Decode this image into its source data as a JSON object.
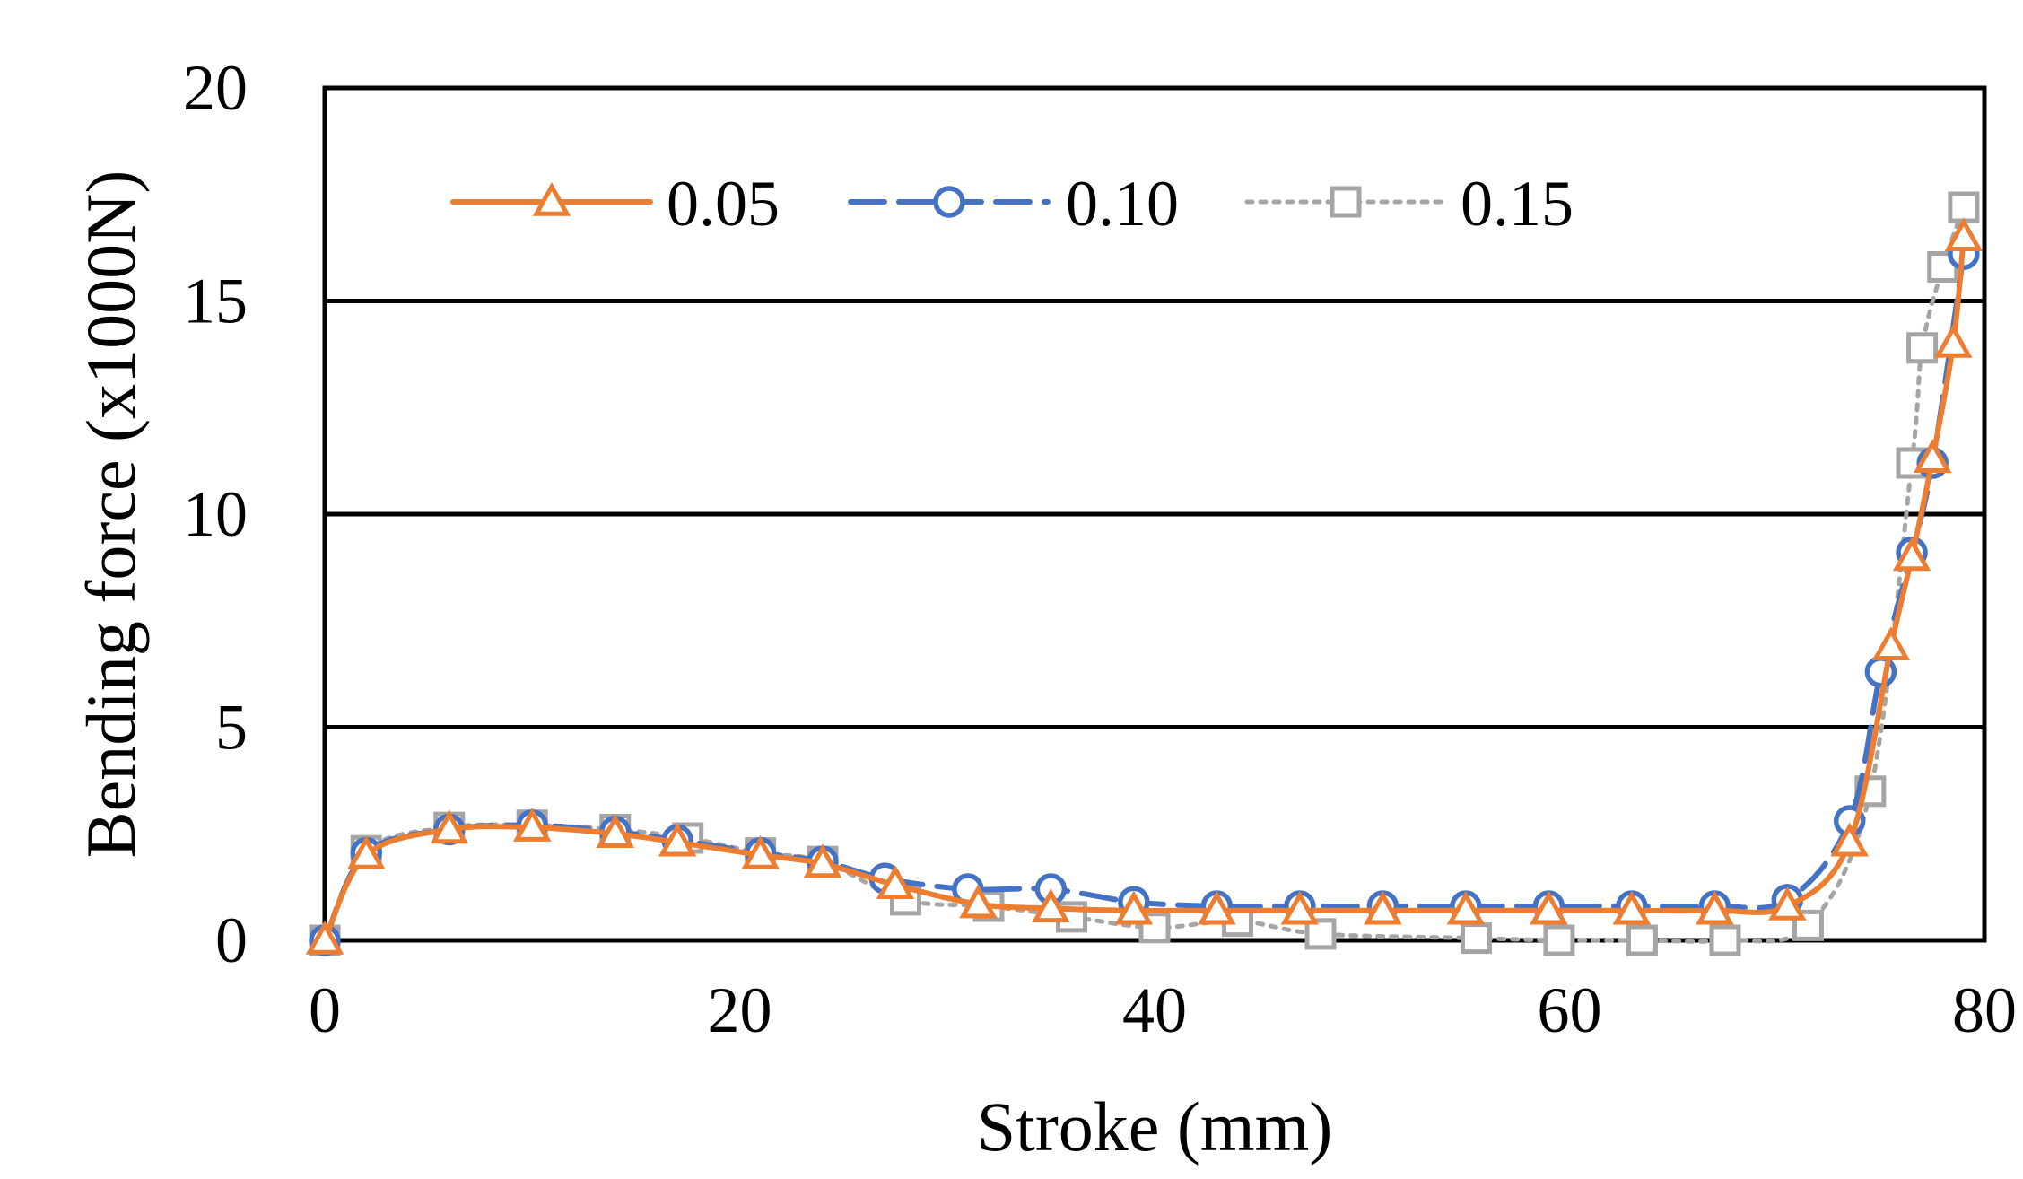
{
  "chart_data": {
    "type": "line",
    "title": "",
    "xlabel": "Stroke (mm)",
    "ylabel": "Bending force (x1000N)",
    "xlim": [
      0,
      80
    ],
    "ylim": [
      0,
      20
    ],
    "x_ticks": [
      0,
      20,
      40,
      60,
      80
    ],
    "x_tick_labels": [
      "0",
      "20",
      "40",
      "60",
      "80"
    ],
    "y_ticks": [
      0,
      5,
      10,
      15,
      20
    ],
    "y_tick_labels": [
      "0",
      "5",
      "10",
      "15",
      "20"
    ],
    "grid": "horizontal",
    "legend_position": "top",
    "series": [
      {
        "name": "0.05",
        "color": "#ED7D31",
        "line": "solid",
        "marker": "triangle",
        "x": [
          0,
          2,
          6,
          10,
          14,
          17,
          21,
          24,
          27.5,
          31.5,
          35,
          39,
          43,
          47,
          51,
          55,
          59,
          63,
          67,
          70.5,
          73.5,
          75.5,
          76.5,
          77.5,
          78.5,
          79
        ],
        "y": [
          0,
          2.0,
          2.6,
          2.65,
          2.5,
          2.3,
          2.0,
          1.8,
          1.3,
          0.85,
          0.75,
          0.7,
          0.7,
          0.7,
          0.7,
          0.7,
          0.7,
          0.7,
          0.7,
          0.8,
          2.3,
          6.9,
          9.0,
          11.3,
          14.0,
          16.5
        ]
      },
      {
        "name": "0.10",
        "color": "#4472C4",
        "line": "dashed",
        "marker": "circle",
        "x": [
          0,
          2,
          6,
          10,
          14,
          17,
          21,
          24,
          27,
          31,
          35,
          39,
          43,
          47,
          51,
          55,
          59,
          63,
          67,
          70.5,
          73.5,
          75,
          76.5,
          77.5,
          79
        ],
        "y": [
          0,
          2.05,
          2.6,
          2.7,
          2.55,
          2.35,
          2.05,
          1.85,
          1.45,
          1.2,
          1.2,
          0.9,
          0.8,
          0.8,
          0.8,
          0.8,
          0.8,
          0.8,
          0.8,
          0.95,
          2.8,
          6.3,
          9.1,
          11.2,
          16.1
        ]
      },
      {
        "name": "0.15",
        "color": "#A5A5A5",
        "line": "dotted",
        "marker": "square",
        "x": [
          0,
          2,
          6,
          10,
          14,
          17.5,
          21,
          24,
          28,
          32,
          36,
          40,
          44,
          48,
          55.5,
          59.5,
          63.5,
          67.5,
          71.5,
          74.5,
          76.5,
          77,
          78,
          79
        ],
        "y": [
          0,
          2.1,
          2.65,
          2.7,
          2.6,
          2.4,
          2.05,
          1.85,
          0.95,
          0.8,
          0.55,
          0.3,
          0.45,
          0.15,
          0.05,
          0.0,
          0.0,
          0.0,
          0.35,
          3.5,
          11.2,
          13.9,
          15.8,
          17.2
        ]
      }
    ]
  }
}
